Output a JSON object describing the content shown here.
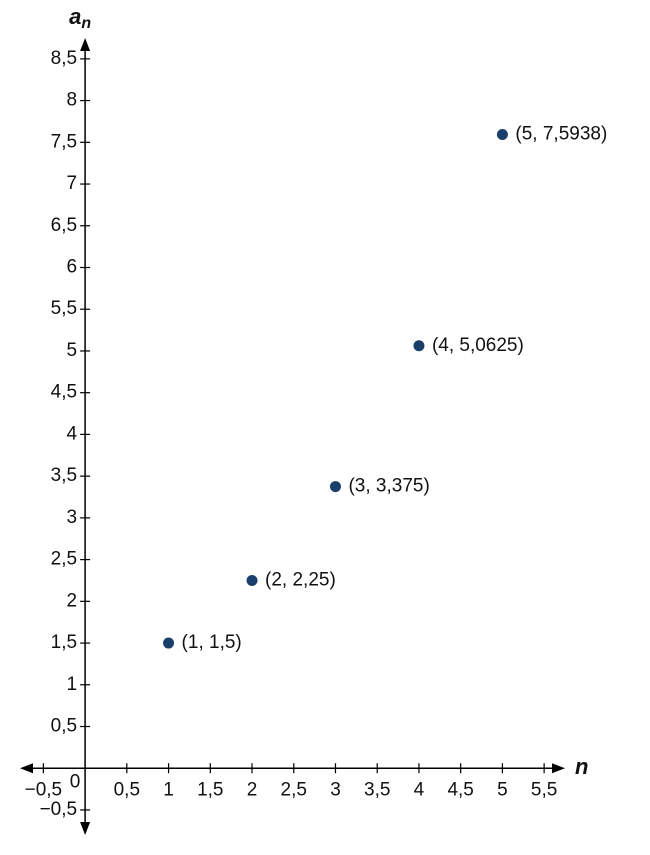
{
  "chart_data": {
    "type": "scatter",
    "xlabel": "n",
    "ylabel": "a",
    "ylabel_subscript": "n",
    "x": [
      1,
      2,
      3,
      4,
      5
    ],
    "values": [
      1.5,
      2.25,
      3.375,
      5.0625,
      7.5938
    ],
    "value_labels": [
      "(1, 1,5)",
      "(2, 2,25)",
      "(3, 3,375)",
      "(4, 5,0625)",
      "(5, 7,5938)"
    ],
    "color": "#1b3f6b",
    "xlim": [
      -0.78,
      5.75
    ],
    "ylim": [
      -0.8,
      8.75
    ],
    "origin_label": "0",
    "xticks": [
      {
        "value": -0.5,
        "label": "−0,5"
      },
      {
        "value": 0.5,
        "label": "0,5"
      },
      1,
      {
        "value": 1.5,
        "label": "1,5"
      },
      2,
      {
        "value": 2.5,
        "label": "2,5"
      },
      3,
      {
        "value": 3.5,
        "label": "3,5"
      },
      4,
      {
        "value": 4.5,
        "label": "4,5"
      },
      5,
      {
        "value": 5.5,
        "label": "5,5"
      }
    ],
    "yticks": [
      {
        "value": -0.5,
        "label": "−0,5"
      },
      {
        "value": 0.5,
        "label": "0,5"
      },
      1,
      {
        "value": 1.5,
        "label": "1,5"
      },
      2,
      {
        "value": 2.5,
        "label": "2,5"
      },
      3,
      {
        "value": 3.5,
        "label": "3,5"
      },
      4,
      {
        "value": 4.5,
        "label": "4,5"
      },
      5,
      {
        "value": 5.5,
        "label": "5,5"
      },
      6,
      {
        "value": 6.5,
        "label": "6,5"
      },
      7,
      {
        "value": 7.5,
        "label": "7,5"
      },
      8,
      {
        "value": 8.5,
        "label": "8,5"
      }
    ]
  }
}
